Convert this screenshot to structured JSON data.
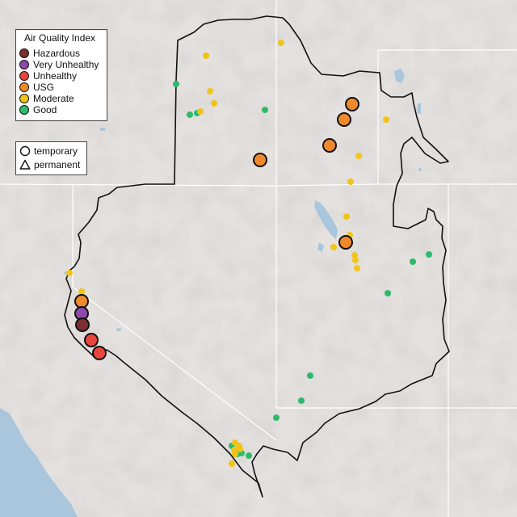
{
  "legend": {
    "title": "Air Quality Index",
    "categories": [
      {
        "label": "Hazardous",
        "color": "#7e2f2f"
      },
      {
        "label": "Very Unhealthy",
        "color": "#8e4aa8"
      },
      {
        "label": "Unhealthy",
        "color": "#e8453c"
      },
      {
        "label": "USG",
        "color": "#ef8a2c"
      },
      {
        "label": "Moderate",
        "color": "#f2c418"
      },
      {
        "label": "Good",
        "color": "#2dbb6a"
      }
    ],
    "monitor_types": [
      {
        "label": "temporary",
        "shape": "circle-icon"
      },
      {
        "label": "permanent",
        "shape": "triangle-icon"
      }
    ]
  },
  "colors": {
    "land": "#e4e1df",
    "water": "#a9c6dc",
    "boundary": "#111111",
    "state_lines": "#ffffff"
  }
}
